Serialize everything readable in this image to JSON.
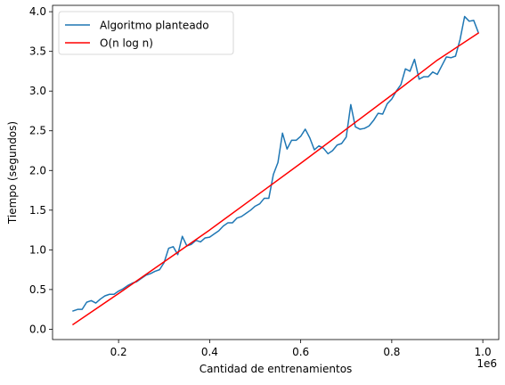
{
  "chart_data": {
    "type": "line",
    "title": "",
    "xlabel": "Cantidad de entrenamientos",
    "ylabel": "Tiempo (segundos)",
    "x_offset_label": "1e6",
    "xlim": [
      0.055,
      1.035
    ],
    "ylim": [
      -0.13,
      4.08
    ],
    "x_ticks": [
      {
        "value": 0.2,
        "label": "0.2"
      },
      {
        "value": 0.4,
        "label": "0.4"
      },
      {
        "value": 0.6,
        "label": "0.6"
      },
      {
        "value": 0.8,
        "label": "0.8"
      },
      {
        "value": 1.0,
        "label": "1.0"
      }
    ],
    "y_ticks": [
      {
        "value": 0.0,
        "label": "0.0"
      },
      {
        "value": 0.5,
        "label": "0.5"
      },
      {
        "value": 1.0,
        "label": "1.0"
      },
      {
        "value": 1.5,
        "label": "1.5"
      },
      {
        "value": 2.0,
        "label": "2.0"
      },
      {
        "value": 2.5,
        "label": "2.5"
      },
      {
        "value": 3.0,
        "label": "3.0"
      },
      {
        "value": 3.5,
        "label": "3.5"
      },
      {
        "value": 4.0,
        "label": "4.0"
      }
    ],
    "grid": false,
    "legend_position": "top-left",
    "series": [
      {
        "name": "Algoritmo planteado",
        "color": "#1f77b4",
        "x": [
          0.1,
          0.11,
          0.12,
          0.13,
          0.14,
          0.15,
          0.16,
          0.17,
          0.18,
          0.19,
          0.2,
          0.21,
          0.22,
          0.23,
          0.24,
          0.25,
          0.26,
          0.27,
          0.28,
          0.29,
          0.3,
          0.31,
          0.32,
          0.33,
          0.34,
          0.35,
          0.36,
          0.37,
          0.38,
          0.39,
          0.4,
          0.41,
          0.42,
          0.43,
          0.44,
          0.45,
          0.46,
          0.47,
          0.48,
          0.49,
          0.5,
          0.51,
          0.52,
          0.53,
          0.54,
          0.55,
          0.56,
          0.57,
          0.58,
          0.59,
          0.6,
          0.61,
          0.62,
          0.63,
          0.64,
          0.65,
          0.66,
          0.67,
          0.68,
          0.69,
          0.7,
          0.71,
          0.72,
          0.73,
          0.74,
          0.75,
          0.76,
          0.77,
          0.78,
          0.79,
          0.8,
          0.81,
          0.82,
          0.83,
          0.84,
          0.85,
          0.86,
          0.87,
          0.88,
          0.89,
          0.9,
          0.91,
          0.92,
          0.93,
          0.94,
          0.95,
          0.96,
          0.97,
          0.98,
          0.99
        ],
        "y": [
          0.23,
          0.25,
          0.25,
          0.34,
          0.36,
          0.33,
          0.38,
          0.42,
          0.44,
          0.44,
          0.48,
          0.51,
          0.55,
          0.58,
          0.6,
          0.64,
          0.68,
          0.7,
          0.73,
          0.75,
          0.84,
          1.02,
          1.04,
          0.94,
          1.17,
          1.05,
          1.07,
          1.12,
          1.1,
          1.15,
          1.16,
          1.2,
          1.24,
          1.3,
          1.34,
          1.34,
          1.4,
          1.42,
          1.46,
          1.5,
          1.55,
          1.58,
          1.65,
          1.65,
          1.95,
          2.1,
          2.47,
          2.27,
          2.38,
          2.38,
          2.43,
          2.52,
          2.41,
          2.26,
          2.31,
          2.28,
          2.21,
          2.25,
          2.32,
          2.34,
          2.42,
          2.83,
          2.55,
          2.52,
          2.53,
          2.56,
          2.63,
          2.72,
          2.71,
          2.84,
          2.9,
          3.0,
          3.08,
          3.28,
          3.25,
          3.4,
          3.15,
          3.18,
          3.18,
          3.24,
          3.21,
          3.32,
          3.43,
          3.42,
          3.44,
          3.65,
          3.94,
          3.88,
          3.89,
          3.74
        ]
      },
      {
        "name": "O(n log n)",
        "color": "#ff0000",
        "x": [
          0.1,
          0.2,
          0.3,
          0.4,
          0.5,
          0.6,
          0.7,
          0.8,
          0.9,
          0.99
        ],
        "y": [
          0.06,
          0.45,
          0.85,
          1.25,
          1.67,
          2.09,
          2.52,
          2.95,
          3.39,
          3.73
        ]
      }
    ]
  }
}
